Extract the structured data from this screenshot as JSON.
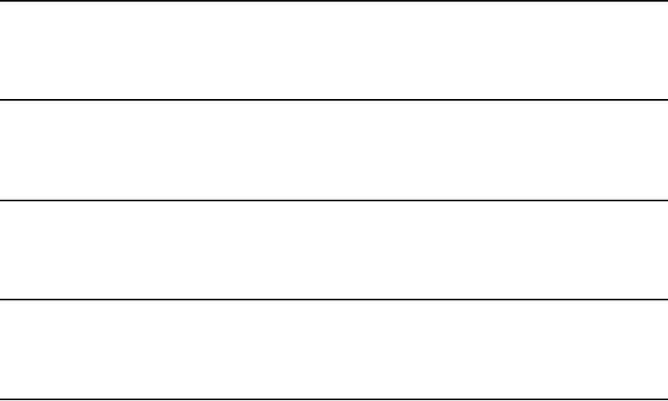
{
  "colors": {
    "rule": "#000000",
    "background": "#ffffff"
  }
}
